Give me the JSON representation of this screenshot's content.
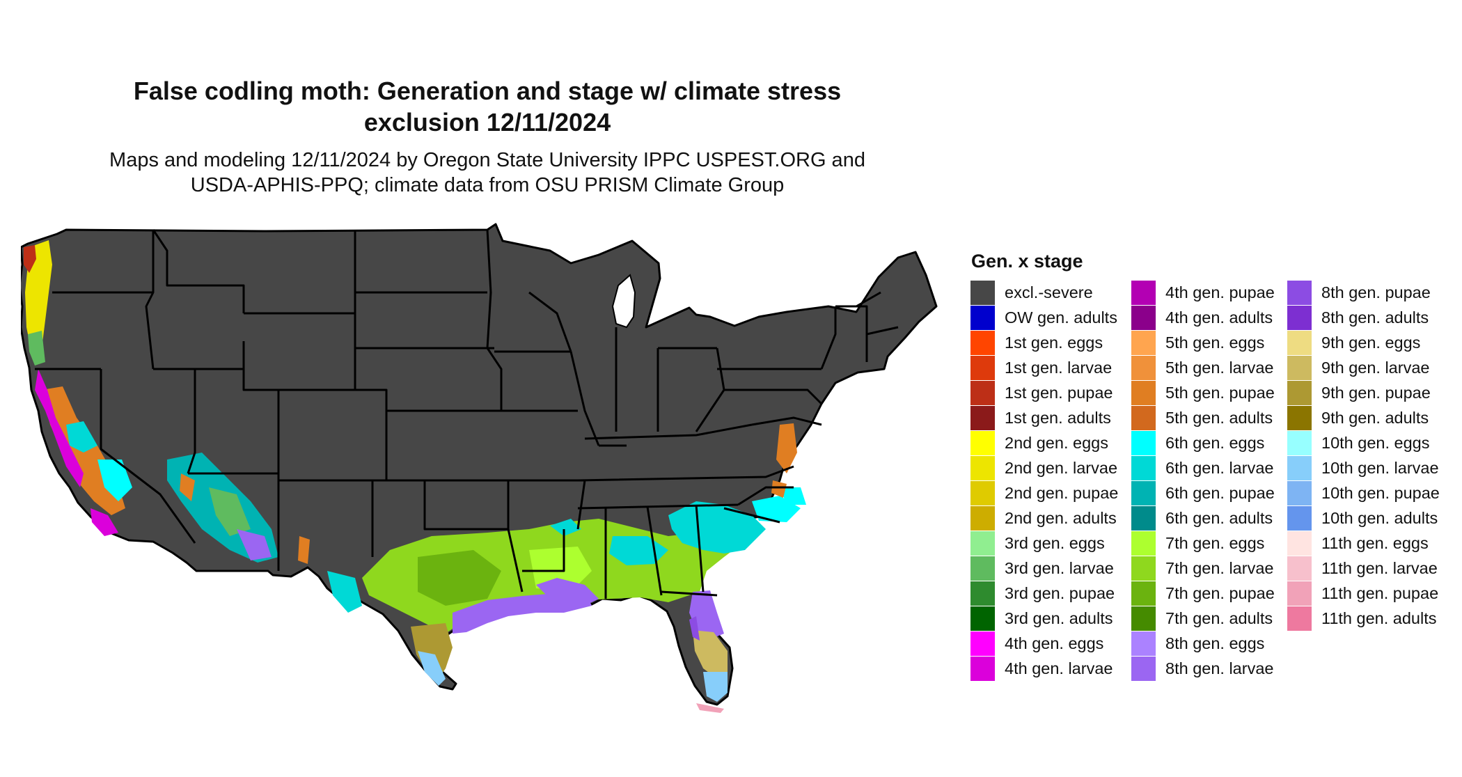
{
  "title_line1": "False codling moth: Generation and stage w/ climate stress",
  "title_line2": "exclusion 12/11/2024",
  "subtitle_line1": "Maps and modeling 12/11/2024 by Oregon State University IPPC USPEST.ORG and",
  "subtitle_line2": "USDA-APHIS-PPQ; climate data from OSU PRISM Climate Group",
  "legend": {
    "title": "Gen. x stage",
    "items": [
      {
        "label": "excl.-severe",
        "color": "#474747"
      },
      {
        "label": "OW gen. adults",
        "color": "#0000cd"
      },
      {
        "label": "1st gen. eggs",
        "color": "#ff4500"
      },
      {
        "label": "1st gen. larvae",
        "color": "#de3a0c"
      },
      {
        "label": "1st gen. pupae",
        "color": "#bd2f17"
      },
      {
        "label": "1st gen. adults",
        "color": "#8b1a1a"
      },
      {
        "label": "2nd gen. eggs",
        "color": "#ffff00"
      },
      {
        "label": "2nd gen. larvae",
        "color": "#ede500"
      },
      {
        "label": "2nd gen. pupae",
        "color": "#dfcb00"
      },
      {
        "label": "2nd gen. adults",
        "color": "#cdad00"
      },
      {
        "label": "3rd gen. eggs",
        "color": "#90ee90"
      },
      {
        "label": "3rd gen. larvae",
        "color": "#5fbb5f"
      },
      {
        "label": "3rd gen. pupae",
        "color": "#2e8b2e"
      },
      {
        "label": "3rd gen. adults",
        "color": "#006400"
      },
      {
        "label": "4th gen. eggs",
        "color": "#ff00ff"
      },
      {
        "label": "4th gen. larvae",
        "color": "#db00db"
      },
      {
        "label": "4th gen. pupae",
        "color": "#b300b3"
      },
      {
        "label": "4th gen. adults",
        "color": "#8b008b"
      },
      {
        "label": "5th gen. eggs",
        "color": "#ffa54f"
      },
      {
        "label": "5th gen. larvae",
        "color": "#f0913a"
      },
      {
        "label": "5th gen. pupae",
        "color": "#e07e22"
      },
      {
        "label": "5th gen. adults",
        "color": "#d2691e"
      },
      {
        "label": "6th gen. eggs",
        "color": "#00ffff"
      },
      {
        "label": "6th gen. larvae",
        "color": "#00d9d6"
      },
      {
        "label": "6th gen. pupae",
        "color": "#00b3b3"
      },
      {
        "label": "6th gen. adults",
        "color": "#008b8b"
      },
      {
        "label": "7th gen. eggs",
        "color": "#adff2f"
      },
      {
        "label": "7th gen. larvae",
        "color": "#8fd81e"
      },
      {
        "label": "7th gen. pupae",
        "color": "#6bb30f"
      },
      {
        "label": "7th gen. adults",
        "color": "#458b00"
      },
      {
        "label": "8th gen. eggs",
        "color": "#ab82ff"
      },
      {
        "label": "8th gen. larvae",
        "color": "#9b66f2"
      },
      {
        "label": "8th gen. pupae",
        "color": "#8c4ce3"
      },
      {
        "label": "8th gen. adults",
        "color": "#7d2fd1"
      },
      {
        "label": "9th gen. eggs",
        "color": "#eedc82"
      },
      {
        "label": "9th gen. larvae",
        "color": "#cdba60"
      },
      {
        "label": "9th gen. pupae",
        "color": "#ad9933"
      },
      {
        "label": "9th gen. adults",
        "color": "#8b7500"
      },
      {
        "label": "10th gen. eggs",
        "color": "#97ffff"
      },
      {
        "label": "10th gen. larvae",
        "color": "#87cefa"
      },
      {
        "label": "10th gen. pupae",
        "color": "#7eb4f3"
      },
      {
        "label": "10th gen. adults",
        "color": "#6495ed"
      },
      {
        "label": "11th gen. eggs",
        "color": "#ffe4e1"
      },
      {
        "label": "11th gen. larvae",
        "color": "#f7c0cc"
      },
      {
        "label": "11th gen. pupae",
        "color": "#f1a2b8"
      },
      {
        "label": "11th gen. adults",
        "color": "#ee799f"
      }
    ]
  }
}
